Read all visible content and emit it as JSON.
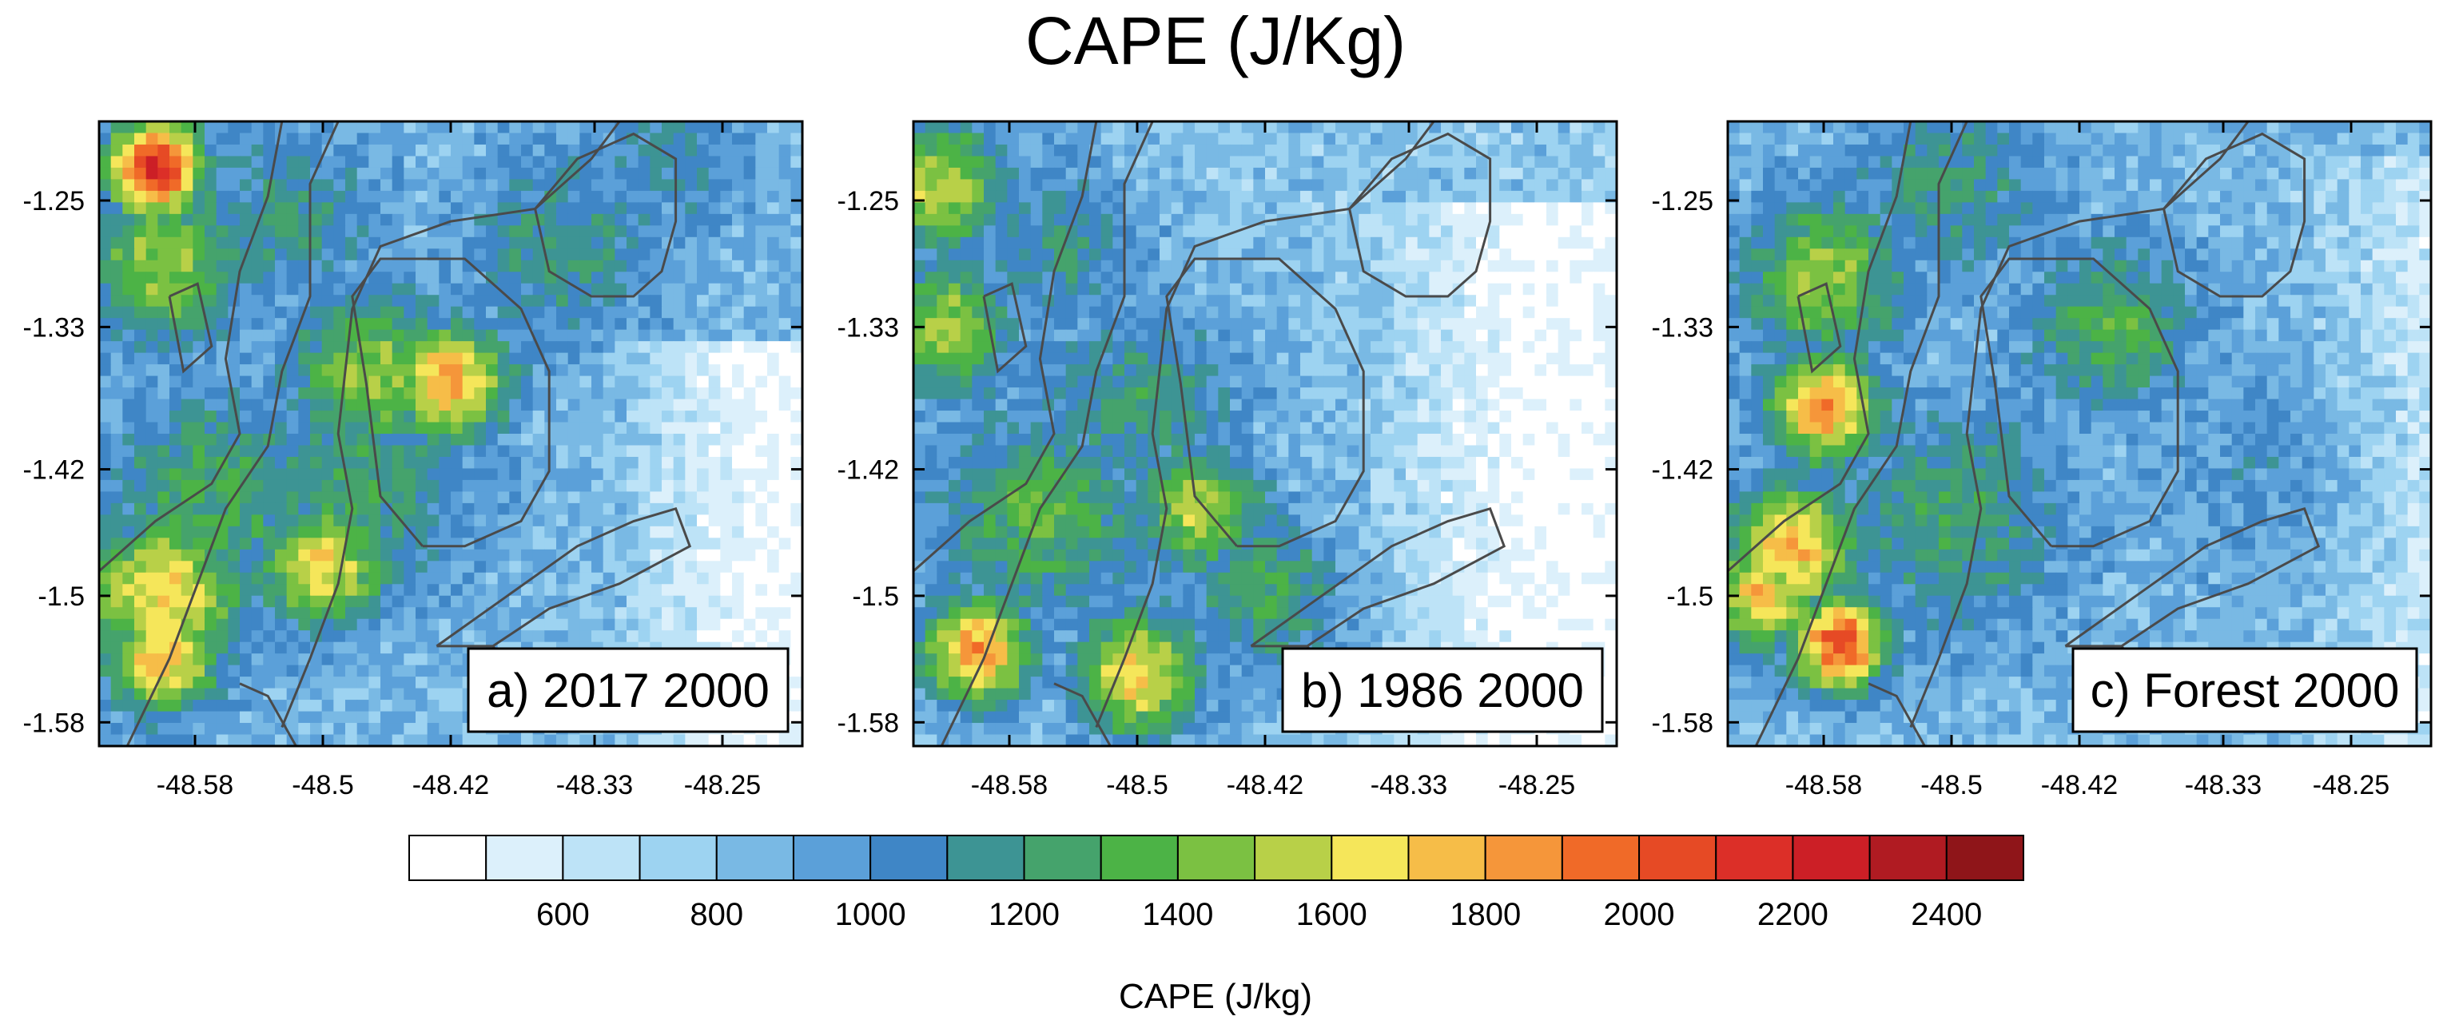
{
  "chart_data": {
    "type": "heatmap",
    "title": "CAPE (J/Kg)",
    "colorbar": {
      "label": "CAPE (J/kg)",
      "tick_labels": [
        "600",
        "800",
        "1000",
        "1200",
        "1400",
        "1600",
        "1800",
        "2000",
        "2200",
        "2400"
      ],
      "levels": [
        500,
        600,
        700,
        800,
        900,
        1000,
        1100,
        1200,
        1300,
        1400,
        1500,
        1600,
        1700,
        1800,
        1900,
        2000,
        2100,
        2200,
        2300,
        2400,
        2500
      ],
      "colors": [
        "#ffffff",
        "#dcf0fb",
        "#bde3f7",
        "#9dd3f1",
        "#79b9e4",
        "#5ba0d9",
        "#3f86c6",
        "#3d9494",
        "#45a36c",
        "#4cb346",
        "#7bc142",
        "#b8d048",
        "#f5e65a",
        "#f6bd48",
        "#f5963a",
        "#f06a28",
        "#e64a25",
        "#dc2f28",
        "#cc1f26",
        "#b01b22",
        "#8f1519"
      ]
    },
    "x_ticks": [
      "-48.58",
      "-48.5",
      "-48.42",
      "-48.33",
      "-48.25"
    ],
    "x_tick_values": [
      -48.58,
      -48.5,
      -48.42,
      -48.33,
      -48.25
    ],
    "y_ticks": [
      "-1.25",
      "-1.33",
      "-1.42",
      "-1.5",
      "-1.58"
    ],
    "y_tick_values": [
      -1.25,
      -1.33,
      -1.42,
      -1.5,
      -1.58
    ],
    "xlim": [
      -48.64,
      -48.2
    ],
    "ylim": [
      -1.595,
      -1.2
    ],
    "panels": [
      {
        "label": "a) 2017 2000",
        "hotspots": [
          {
            "lon": -48.605,
            "lat": -1.23,
            "value": 2200,
            "spread": 0.03
          },
          {
            "lon": -48.6,
            "lat": -1.29,
            "value": 1500,
            "spread": 0.05
          },
          {
            "lon": -48.42,
            "lat": -1.365,
            "value": 1850,
            "spread": 0.035
          },
          {
            "lon": -48.47,
            "lat": -1.36,
            "value": 1500,
            "spread": 0.05
          },
          {
            "lon": -48.6,
            "lat": -1.5,
            "value": 1700,
            "spread": 0.05
          },
          {
            "lon": -48.6,
            "lat": -1.54,
            "value": 1750,
            "spread": 0.035
          },
          {
            "lon": -48.5,
            "lat": -1.48,
            "value": 1650,
            "spread": 0.04
          },
          {
            "lon": -48.57,
            "lat": -1.44,
            "value": 1300,
            "spread": 0.07
          },
          {
            "lon": -48.48,
            "lat": -1.43,
            "value": 1250,
            "spread": 0.07
          },
          {
            "lon": -48.35,
            "lat": -1.28,
            "value": 1200,
            "spread": 0.06
          },
          {
            "lon": -48.52,
            "lat": -1.26,
            "value": 1150,
            "spread": 0.06
          },
          {
            "lon": -48.28,
            "lat": -1.22,
            "value": 1100,
            "spread": 0.05
          }
        ],
        "background": 850,
        "east_drop": {
          "lon_start": -48.33,
          "lat_start": -1.34,
          "amount": 400
        }
      },
      {
        "label": "b) 1986 2000",
        "hotspots": [
          {
            "lon": -48.625,
            "lat": -1.24,
            "value": 1550,
            "spread": 0.045
          },
          {
            "lon": -48.62,
            "lat": -1.33,
            "value": 1500,
            "spread": 0.045
          },
          {
            "lon": -48.6,
            "lat": -1.535,
            "value": 1850,
            "spread": 0.035
          },
          {
            "lon": -48.5,
            "lat": -1.55,
            "value": 1700,
            "spread": 0.04
          },
          {
            "lon": -48.46,
            "lat": -1.445,
            "value": 1550,
            "spread": 0.04
          },
          {
            "lon": -48.56,
            "lat": -1.45,
            "value": 1350,
            "spread": 0.07
          },
          {
            "lon": -48.5,
            "lat": -1.38,
            "value": 1200,
            "spread": 0.07
          },
          {
            "lon": -48.55,
            "lat": -1.28,
            "value": 1150,
            "spread": 0.06
          },
          {
            "lon": -48.42,
            "lat": -1.5,
            "value": 1300,
            "spread": 0.05
          }
        ],
        "background": 800,
        "east_drop": {
          "lon_start": -48.36,
          "lat_start": -1.25,
          "amount": 350
        }
      },
      {
        "label": "c) Forest 2000",
        "hotspots": [
          {
            "lon": -48.58,
            "lat": -1.38,
            "value": 1850,
            "spread": 0.035
          },
          {
            "lon": -48.6,
            "lat": -1.47,
            "value": 1800,
            "spread": 0.04
          },
          {
            "lon": -48.57,
            "lat": -1.53,
            "value": 2050,
            "spread": 0.03
          },
          {
            "lon": -48.62,
            "lat": -1.5,
            "value": 1700,
            "spread": 0.035
          },
          {
            "lon": -48.58,
            "lat": -1.3,
            "value": 1500,
            "spread": 0.05
          },
          {
            "lon": -48.4,
            "lat": -1.33,
            "value": 1350,
            "spread": 0.05
          },
          {
            "lon": -48.5,
            "lat": -1.45,
            "value": 1250,
            "spread": 0.07
          },
          {
            "lon": -48.5,
            "lat": -1.24,
            "value": 1200,
            "spread": 0.06
          },
          {
            "lon": -48.3,
            "lat": -1.42,
            "value": 1000,
            "spread": 0.08
          }
        ],
        "background": 850,
        "east_drop": {
          "lon_start": -48.3,
          "lat_start": -1.22,
          "amount": 250
        }
      }
    ]
  }
}
